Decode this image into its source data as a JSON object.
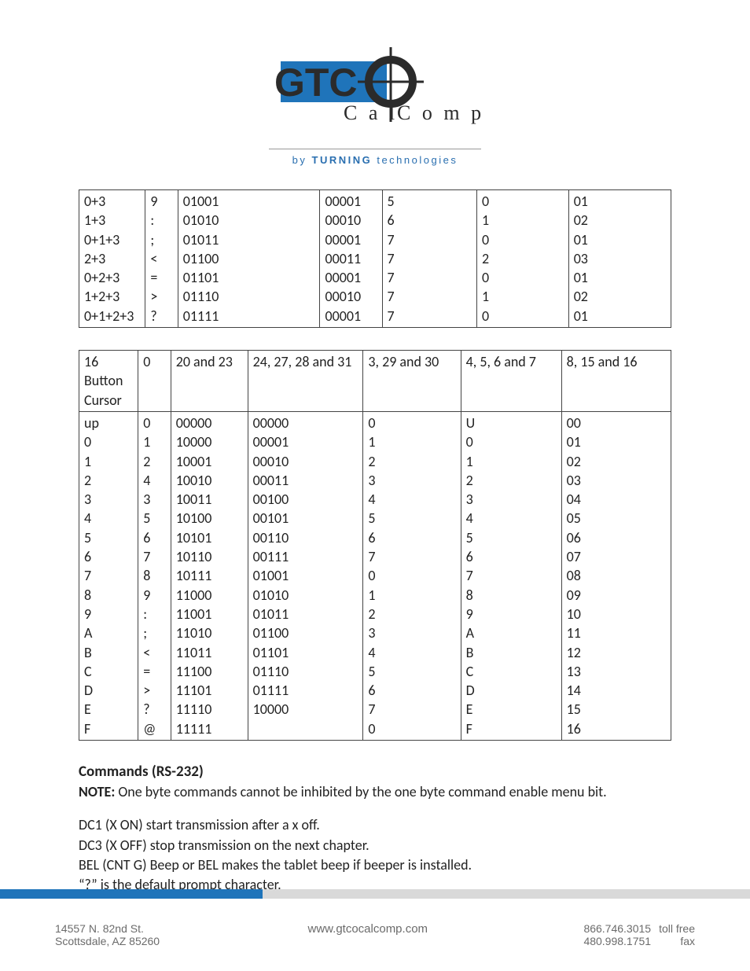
{
  "logo": {
    "gtco_text": "GTCO",
    "calcomp_left": "Cal",
    "calcomp_right": "Comp",
    "byline_prefix": "by ",
    "byline_bold": "TURNING",
    "byline_suffix": " technologies",
    "blue": "#1f74ba",
    "dark": "#2b2b2b"
  },
  "table1": {
    "col_widths_pct": [
      11.2,
      5.5,
      24,
      10.5,
      16,
      15.5,
      17.3
    ],
    "rows": [
      [
        "0+3",
        "9",
        "01001",
        "00001",
        "5",
        "0",
        "01"
      ],
      [
        "1+3",
        ":",
        "01010",
        "00010",
        "6",
        "1",
        "02"
      ],
      [
        "0+1+3",
        ";",
        "01011",
        "00001",
        "7",
        "0",
        "01"
      ],
      [
        "2+3",
        "<",
        "01100",
        "00011",
        "7",
        "2",
        "03"
      ],
      [
        "0+2+3",
        "=",
        "01101",
        "00001",
        "7",
        "0",
        "01"
      ],
      [
        "1+2+3",
        ">",
        "01110",
        "00010",
        "7",
        "1",
        "02"
      ],
      [
        "0+1+2+3",
        "?",
        "01111",
        "00001",
        "7",
        "0",
        "01"
      ]
    ]
  },
  "table2": {
    "col_widths_pct": [
      10,
      5.5,
      13,
      19.5,
      16.5,
      17,
      18.5
    ],
    "header_row": [
      "16 Button Cursor",
      "0",
      "20 and 23",
      "24, 27, 28 and 31",
      "3, 29 and 30",
      "4, 5, 6 and 7",
      "8, 15 and 16"
    ],
    "rows_col0": [
      "up",
      "0",
      "1",
      "2",
      "3",
      "4",
      "5",
      "6",
      "7",
      "8",
      "9",
      "A",
      "B",
      "C",
      "D",
      "E",
      "F"
    ],
    "rows_col1": [
      "0",
      "1",
      "2",
      "4",
      "3",
      "5",
      "6",
      "7",
      "8",
      "9",
      ":",
      ";",
      "<",
      "=",
      ">",
      "?",
      "@"
    ],
    "rows_col2": [
      "00000",
      "10000",
      "10001",
      "10010",
      "10011",
      "10100",
      "10101",
      "10110",
      "10111",
      "11000",
      "11001",
      "11010",
      "11011",
      "11100",
      "11101",
      "11110",
      "11111"
    ],
    "rows_col3": [
      "00000",
      "00001",
      "00010",
      "00011",
      "00100",
      "00101",
      "00110",
      "00111",
      "01001",
      "01010",
      "01011",
      "01100",
      "01101",
      "01110",
      "01111",
      "10000",
      ""
    ],
    "rows_col4": [
      "0",
      "1",
      "2",
      "3",
      "4",
      "5",
      "6",
      "7",
      "0",
      "1",
      "2",
      "3",
      "4",
      "5",
      "6",
      "7",
      "0"
    ],
    "rows_col5": [
      "U",
      "0",
      "1",
      "2",
      "3",
      "4",
      "5",
      "6",
      "7",
      "8",
      "9",
      "A",
      "B",
      "C",
      "D",
      "E",
      "F"
    ],
    "rows_col6": [
      "00",
      "01",
      "02",
      "03",
      "04",
      "05",
      "06",
      "07",
      "08",
      "09",
      "10",
      "11",
      "12",
      "13",
      "14",
      "15",
      "16"
    ]
  },
  "commands_section": {
    "title": "Commands (RS-232)",
    "note_label": "NOTE:",
    "note_text": " One byte commands cannot be inhibited by the one byte command enable menu bit.",
    "lines": [
      "DC1 (X ON) start transmission after a x off.",
      "DC3 (X OFF) stop transmission on the next chapter.",
      "BEL (CNT G) Beep or BEL makes the tablet beep if beeper is installed.",
      "“?” is the default prompt character."
    ]
  },
  "footbar": {
    "blue_pct": 35,
    "blue": "#1f74ba",
    "grey": "#d9d9d9"
  },
  "footer": {
    "addr_line1": "14557 N. 82nd St.",
    "addr_line2": "Scottsdale, AZ 85260",
    "url": "www.gtcocalcomp.com",
    "phone_tollfree": "866.746.3015",
    "label_tollfree": "toll free",
    "phone_fax": "480.998.1751",
    "label_fax": "fax"
  }
}
